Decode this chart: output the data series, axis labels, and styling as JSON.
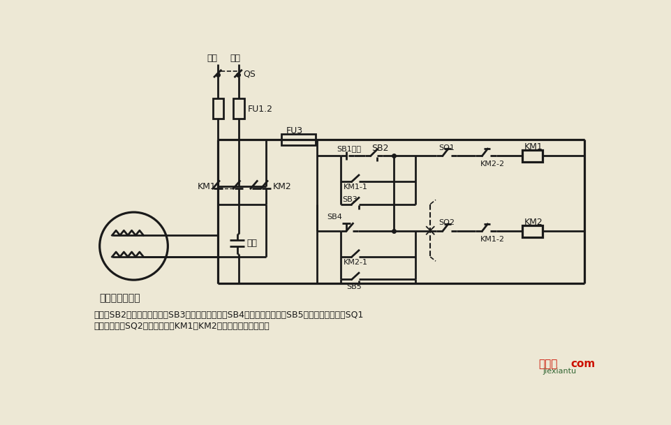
{
  "bg_color": "#ede8d5",
  "lc": "#1a1a1a",
  "lw": 2.0,
  "huoxian": "火线",
  "lingxian": "零线",
  "QS": "QS",
  "FU12": "FU1.2",
  "FU3": "FU3",
  "SB1": "SB1停止",
  "SB2": "SB2",
  "SB3": "SB3",
  "SB4": "SB4",
  "SB5": "SB5",
  "KM1_1": "KM1-1",
  "KM2_1": "KM2-1",
  "SQ1": "SQ1",
  "SQ2": "SQ2",
  "KM1_coil": "KM1",
  "KM2_coil": "KM2",
  "KM1_main": "KM1",
  "KM2_main": "KM2",
  "KM2_2": "KM2-2",
  "KM1_2": "KM1-2",
  "motor_label": "单相电容电动机",
  "cap_label": "电容",
  "desc1": "说明：SB2为上升启动按鈕，SB3为上升点动按鈕，SB4为下降启动按鈕，SB5为下降点动按鈕；SQ1",
  "desc2": "为最高限位，SQ2为最低限位。KM1、KM2可用中间继电器代替。",
  "wm1": "接线图",
  "wm2": "com",
  "wm3": "jiexiantu"
}
